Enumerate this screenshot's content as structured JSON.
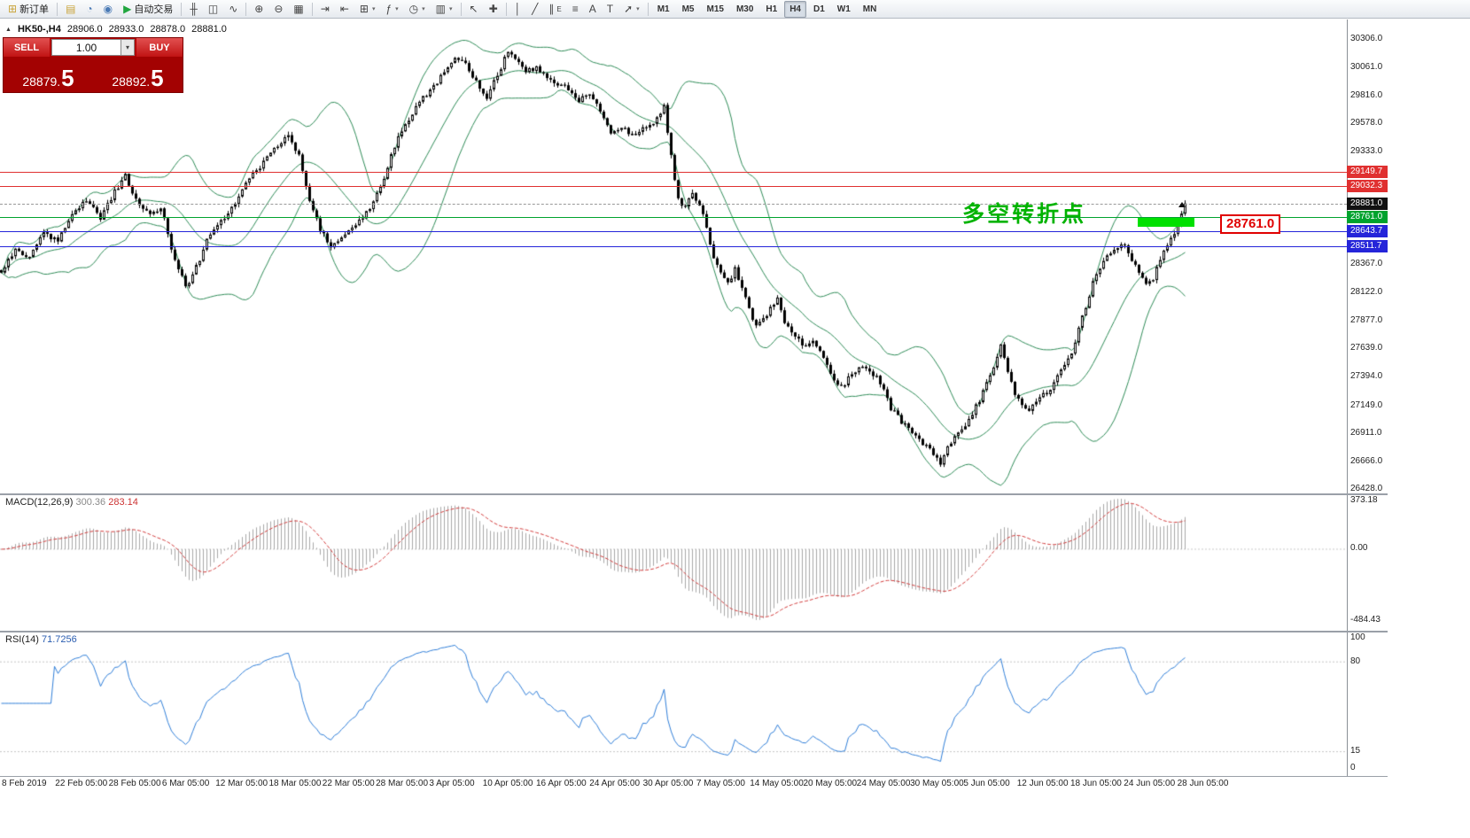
{
  "icons": {
    "dropdown": "▾",
    "window_marker": "▲"
  },
  "toolbar": {
    "items": [
      {
        "type": "button",
        "name": "new-order-button",
        "label": "新订单",
        "glyph": "⊞",
        "glyph_color": "#caa53d"
      },
      {
        "type": "sep"
      },
      {
        "type": "button",
        "name": "charts-icon",
        "glyph": "▤",
        "glyph_color": "#caa53d"
      },
      {
        "type": "button",
        "name": "profiles-icon",
        "glyph": "◔",
        "glyph_color": "#4a7ab5"
      },
      {
        "type": "button",
        "name": "alerts-icon",
        "glyph": "◉",
        "glyph_color": "#4a7ab5"
      },
      {
        "type": "button",
        "name": "autotrading-button",
        "label": "自动交易",
        "glyph": "▶",
        "glyph_color": "#21a63f"
      },
      {
        "type": "sep"
      },
      {
        "type": "button",
        "name": "bar-chart-mode-icon",
        "glyph": "╫"
      },
      {
        "type": "button",
        "name": "candlestick-mode-icon",
        "glyph": "◫"
      },
      {
        "type": "button",
        "name": "line-chart-mode-icon",
        "glyph": "∿"
      },
      {
        "type": "sep"
      },
      {
        "type": "button",
        "name": "zoom-in-icon",
        "glyph": "⊕"
      },
      {
        "type": "button",
        "name": "zoom-out-icon",
        "glyph": "⊖"
      },
      {
        "type": "button",
        "name": "tile-windows-icon",
        "glyph": "▦"
      },
      {
        "type": "sep"
      },
      {
        "type": "button",
        "name": "auto-scroll-icon",
        "glyph": "⇥"
      },
      {
        "type": "button",
        "name": "chart-shift-icon",
        "glyph": "⇤"
      },
      {
        "type": "button",
        "name": "new-chart-button",
        "glyph": "⊞",
        "dropdown": true
      },
      {
        "type": "button",
        "name": "indicators-button",
        "glyph": "ƒ",
        "dropdown": true
      },
      {
        "type": "button",
        "name": "periods-button",
        "glyph": "◷",
        "dropdown": true
      },
      {
        "type": "button",
        "name": "templates-button",
        "glyph": "▥",
        "dropdown": true
      },
      {
        "type": "sep"
      },
      {
        "type": "button",
        "name": "cursor-tool-icon",
        "glyph": "↖"
      },
      {
        "type": "button",
        "name": "crosshair-tool-icon",
        "glyph": "✚"
      },
      {
        "type": "sep"
      },
      {
        "type": "button",
        "name": "vertical-line-tool-icon",
        "glyph": "│"
      },
      {
        "type": "button",
        "name": "trendline-tool-icon",
        "glyph": "╱"
      },
      {
        "type": "button",
        "name": "channel-tool-icon",
        "glyph": "∥",
        "sub": "E"
      },
      {
        "type": "button",
        "name": "fibonacci-tool-icon",
        "glyph": "≡"
      },
      {
        "type": "button",
        "name": "text-tool-icon",
        "glyph": "A"
      },
      {
        "type": "button",
        "name": "text-box-tool-icon",
        "glyph": "T"
      },
      {
        "type": "button",
        "name": "arrows-tool-icon",
        "glyph": "➚",
        "dropdown": true
      },
      {
        "type": "sep"
      }
    ],
    "timeframes": [
      "M1",
      "M5",
      "M15",
      "M30",
      "H1",
      "H4",
      "D1",
      "W1",
      "MN"
    ],
    "active_timeframe": "H4"
  },
  "chart_header": {
    "symbol": "HK50-,H4",
    "open": "28906.0",
    "high": "28933.0",
    "low": "28878.0",
    "close": "28881.0"
  },
  "trade_panel": {
    "sell_label": "SELL",
    "buy_label": "BUY",
    "volume": "1.00",
    "sell_price": "28879.5",
    "buy_price": "28892.5"
  },
  "annotation": {
    "text": "多空转折点",
    "color": "#00b300"
  },
  "price_tag": {
    "text": "28761.0",
    "color": "#e00000"
  },
  "highlight_bar": {
    "color": "#00e000"
  },
  "h_lines": [
    {
      "name": "resistance-line-1",
      "price": 29149.7,
      "color": "#e03030",
      "style": "solid"
    },
    {
      "name": "resistance-line-2",
      "price": 29032.3,
      "color": "#e03030",
      "style": "solid"
    },
    {
      "name": "current-price-line",
      "price": 28881,
      "color": "#999999",
      "style": "dashed"
    },
    {
      "name": "pivot-line",
      "price": 28761,
      "color": "#00a32e",
      "style": "solid"
    },
    {
      "name": "support-line-1",
      "price": 28643.7,
      "color": "#2525d9",
      "style": "solid"
    },
    {
      "name": "support-line-2",
      "price": 28511.7,
      "color": "#2525d9",
      "style": "solid"
    }
  ],
  "price_axis": {
    "ticks": [
      {
        "label": "30306.0",
        "price": 30306
      },
      {
        "label": "30061.0",
        "price": 30061
      },
      {
        "label": "29816.0",
        "price": 29816
      },
      {
        "label": "29578.0",
        "price": 29578
      },
      {
        "label": "29333.0",
        "price": 29333
      },
      {
        "label": "28367.0",
        "price": 28367
      },
      {
        "label": "28122.0",
        "price": 28122
      },
      {
        "label": "27877.0",
        "price": 27877
      },
      {
        "label": "27639.0",
        "price": 27639
      },
      {
        "label": "27394.0",
        "price": 27394
      },
      {
        "label": "27149.0",
        "price": 27149
      },
      {
        "label": "26911.0",
        "price": 26911
      },
      {
        "label": "26666.0",
        "price": 26666
      },
      {
        "label": "26428.0",
        "price": 26428
      }
    ],
    "badges": [
      {
        "label": "29149.7",
        "price": 29149.7,
        "color": "#e03030"
      },
      {
        "label": "29032.3",
        "price": 29032.3,
        "color": "#e03030"
      },
      {
        "label": "28881.0",
        "price": 28881,
        "color": "#111111"
      },
      {
        "label": "28761.0",
        "price": 28761,
        "color": "#00a32e"
      },
      {
        "label": "28643.7",
        "price": 28643.7,
        "color": "#2525d9"
      },
      {
        "label": "28511.7",
        "price": 28511.7,
        "color": "#2525d9"
      }
    ]
  },
  "macd": {
    "label": "MACD(12,26,9)",
    "value": "300.36",
    "signal": "283.14",
    "axis": [
      "373.18",
      "0.00",
      "-484.43"
    ],
    "histogram_color": "#a8a8a8",
    "signal_color": "#d23b3b"
  },
  "rsi": {
    "label": "RSI(14)",
    "value": "71.7256",
    "axis": [
      "100",
      "80",
      "15",
      "0"
    ],
    "levels": [
      80,
      15
    ],
    "line_color": "#2f7ed8"
  },
  "time_axis": [
    "8 Feb 2019",
    "22 Feb 05:00",
    "28 Feb 05:00",
    "6 Mar 05:00",
    "12 Mar 05:00",
    "18 Mar 05:00",
    "22 Mar 05:00",
    "28 Mar 05:00",
    "3 Apr 05:00",
    "10 Apr 05:00",
    "16 Apr 05:00",
    "24 Apr 05:00",
    "30 Apr 05:00",
    "7 May 05:00",
    "14 May 05:00",
    "20 May 05:00",
    "24 May 05:00",
    "30 May 05:00",
    "5 Jun 05:00",
    "12 Jun 05:00",
    "18 Jun 05:00",
    "24 Jun 05:00",
    "28 Jun 05:00"
  ],
  "chart_data": {
    "type": "candlestick",
    "symbol": "HK50-",
    "timeframe": "H4",
    "visible_range": {
      "price_min": 26428,
      "price_max": 30306
    },
    "candle_count": 335,
    "band_color": "#2e8b57",
    "price_anchors": [
      [
        0,
        28300
      ],
      [
        4,
        28480
      ],
      [
        8,
        28430
      ],
      [
        12,
        28620
      ],
      [
        16,
        28550
      ],
      [
        20,
        28800
      ],
      [
        24,
        28900
      ],
      [
        28,
        28760
      ],
      [
        32,
        28980
      ],
      [
        35,
        29120
      ],
      [
        38,
        28920
      ],
      [
        42,
        28780
      ],
      [
        45,
        28860
      ],
      [
        48,
        28500
      ],
      [
        52,
        28150
      ],
      [
        55,
        28330
      ],
      [
        58,
        28560
      ],
      [
        62,
        28720
      ],
      [
        66,
        28890
      ],
      [
        70,
        29090
      ],
      [
        74,
        29240
      ],
      [
        78,
        29390
      ],
      [
        81,
        29470
      ],
      [
        84,
        29280
      ],
      [
        87,
        28920
      ],
      [
        90,
        28660
      ],
      [
        93,
        28500
      ],
      [
        96,
        28570
      ],
      [
        100,
        28690
      ],
      [
        104,
        28830
      ],
      [
        107,
        29010
      ],
      [
        110,
        29290
      ],
      [
        113,
        29510
      ],
      [
        116,
        29660
      ],
      [
        119,
        29790
      ],
      [
        122,
        29880
      ],
      [
        125,
        30030
      ],
      [
        128,
        30150
      ],
      [
        131,
        30070
      ],
      [
        134,
        29930
      ],
      [
        137,
        29800
      ],
      [
        140,
        29990
      ],
      [
        143,
        30190
      ],
      [
        145,
        30130
      ],
      [
        148,
        30010
      ],
      [
        151,
        30060
      ],
      [
        154,
        29970
      ],
      [
        157,
        29920
      ],
      [
        160,
        29870
      ],
      [
        163,
        29770
      ],
      [
        166,
        29840
      ],
      [
        169,
        29670
      ],
      [
        172,
        29490
      ],
      [
        175,
        29540
      ],
      [
        178,
        29470
      ],
      [
        181,
        29530
      ],
      [
        184,
        29580
      ],
      [
        187,
        29710
      ],
      [
        189,
        29290
      ],
      [
        191,
        28910
      ],
      [
        193,
        28860
      ],
      [
        195,
        28960
      ],
      [
        197,
        28880
      ],
      [
        199,
        28660
      ],
      [
        201,
        28410
      ],
      [
        203,
        28290
      ],
      [
        205,
        28190
      ],
      [
        207,
        28310
      ],
      [
        209,
        28160
      ],
      [
        211,
        27960
      ],
      [
        213,
        27810
      ],
      [
        215,
        27890
      ],
      [
        217,
        27970
      ],
      [
        219,
        28070
      ],
      [
        221,
        27870
      ],
      [
        223,
        27770
      ],
      [
        225,
        27710
      ],
      [
        227,
        27650
      ],
      [
        229,
        27690
      ],
      [
        231,
        27610
      ],
      [
        233,
        27470
      ],
      [
        235,
        27350
      ],
      [
        237,
        27300
      ],
      [
        239,
        27370
      ],
      [
        241,
        27420
      ],
      [
        243,
        27480
      ],
      [
        245,
        27440
      ],
      [
        247,
        27390
      ],
      [
        249,
        27260
      ],
      [
        251,
        27110
      ],
      [
        253,
        27040
      ],
      [
        255,
        26970
      ],
      [
        257,
        26900
      ],
      [
        259,
        26840
      ],
      [
        261,
        26790
      ],
      [
        263,
        26710
      ],
      [
        265,
        26650
      ],
      [
        267,
        26770
      ],
      [
        269,
        26860
      ],
      [
        271,
        26940
      ],
      [
        273,
        27020
      ],
      [
        276,
        27190
      ],
      [
        279,
        27390
      ],
      [
        282,
        27650
      ],
      [
        284,
        27430
      ],
      [
        286,
        27230
      ],
      [
        288,
        27140
      ],
      [
        290,
        27090
      ],
      [
        293,
        27200
      ],
      [
        296,
        27290
      ],
      [
        299,
        27440
      ],
      [
        302,
        27600
      ],
      [
        305,
        27900
      ],
      [
        308,
        28190
      ],
      [
        311,
        28390
      ],
      [
        314,
        28460
      ],
      [
        317,
        28530
      ],
      [
        319,
        28390
      ],
      [
        321,
        28270
      ],
      [
        323,
        28170
      ],
      [
        325,
        28230
      ],
      [
        327,
        28400
      ],
      [
        329,
        28530
      ],
      [
        331,
        28630
      ],
      [
        333,
        28810
      ],
      [
        334,
        28881
      ]
    ]
  }
}
